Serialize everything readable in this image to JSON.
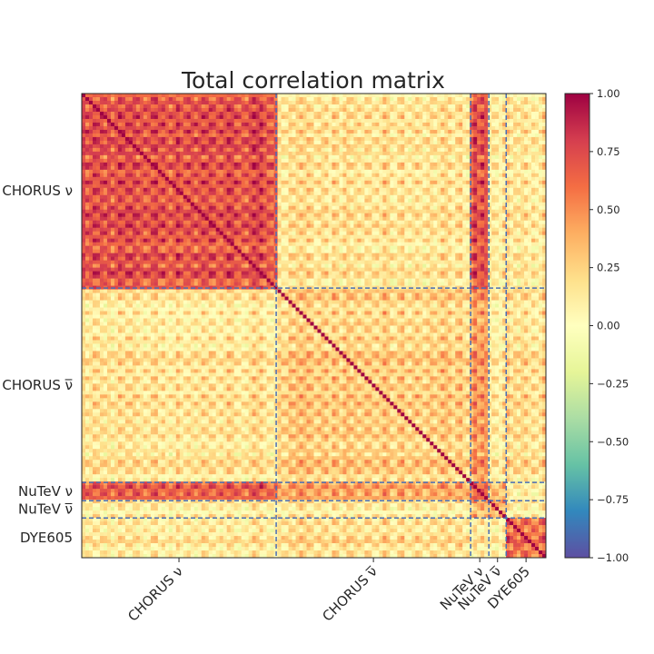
{
  "chart_data": {
    "type": "heatmap",
    "title": "Total correlation matrix",
    "colormap": "Spectral_r",
    "value_range": [
      -1.0,
      1.0
    ],
    "blocks": [
      {
        "label": "CHORUS ν",
        "points": 416
      },
      {
        "label": "CHORUS ν̅",
        "points": 416
      },
      {
        "label": "NuTeV ν",
        "points": 39
      },
      {
        "label": "NuTeV ν̅",
        "points": 37
      },
      {
        "label": "DYE605",
        "points": 85
      }
    ],
    "block_mean_correlation": [
      [
        0.7,
        0.15,
        0.7,
        0.1,
        0.15
      ],
      [
        0.15,
        0.25,
        0.45,
        0.1,
        0.2
      ],
      [
        0.7,
        0.45,
        0.7,
        0.35,
        0.15
      ],
      [
        0.1,
        0.1,
        0.35,
        0.4,
        0.1
      ],
      [
        0.15,
        0.2,
        0.15,
        0.1,
        0.65
      ]
    ],
    "colorbar_ticks": [
      "1.00",
      "0.75",
      "0.50",
      "0.25",
      "0.00",
      "−0.25",
      "−0.50",
      "−0.75",
      "−1.00"
    ],
    "grid": false,
    "block_separators": "dashed"
  }
}
